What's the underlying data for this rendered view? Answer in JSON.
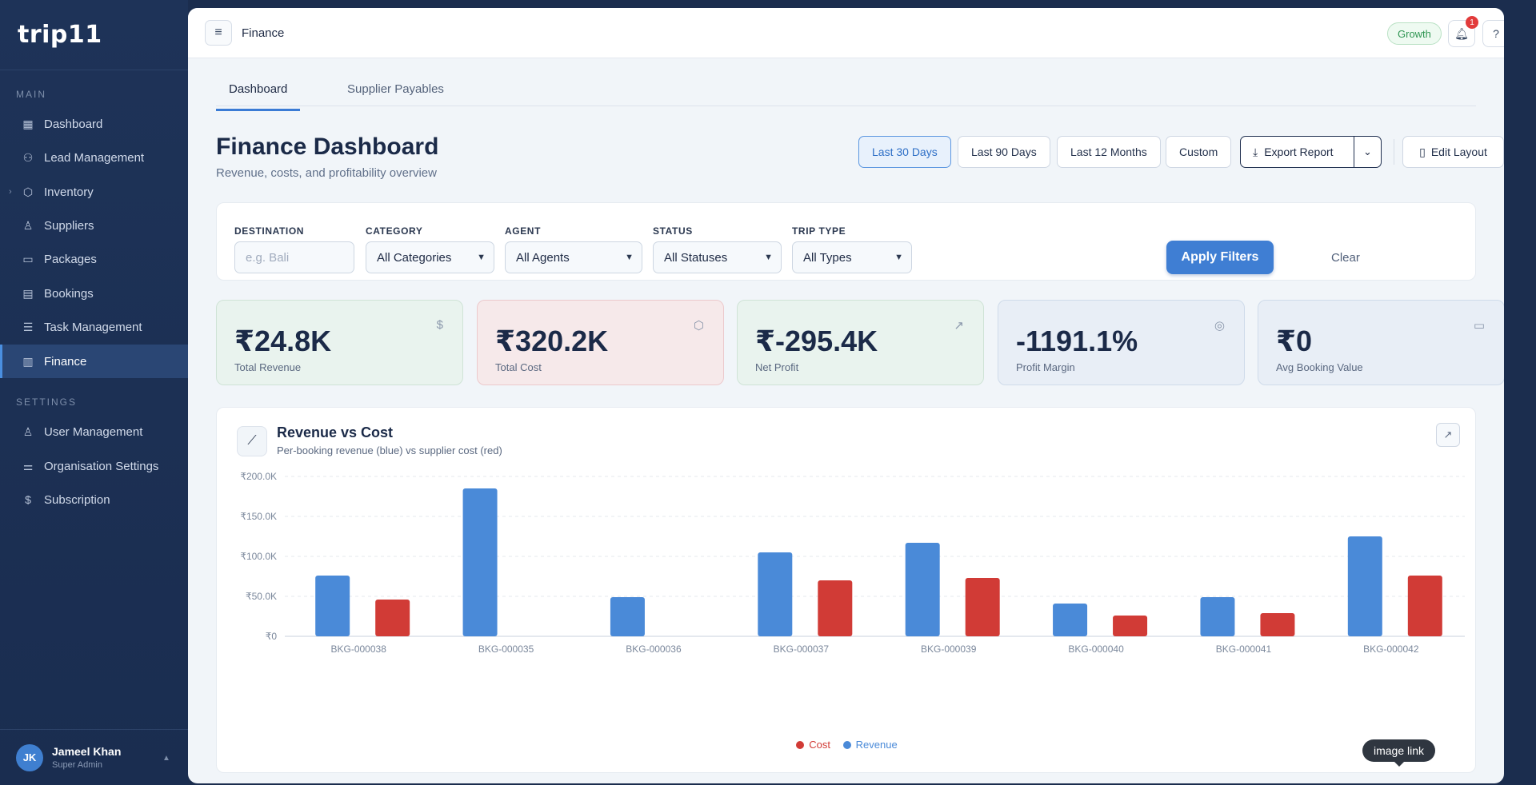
{
  "brand": {
    "logo": "trip11"
  },
  "sidebar": {
    "main_label": "MAIN",
    "settings_label": "SETTINGS",
    "main_items": [
      {
        "label": "Dashboard",
        "icon": "grid-icon"
      },
      {
        "label": "Lead Management",
        "icon": "user-plus-icon"
      },
      {
        "label": "Inventory",
        "icon": "box-icon"
      },
      {
        "label": "Suppliers",
        "icon": "user-icon"
      },
      {
        "label": "Packages",
        "icon": "archive-icon"
      },
      {
        "label": "Bookings",
        "icon": "calendar-icon"
      },
      {
        "label": "Task Management",
        "icon": "tasks-icon"
      },
      {
        "label": "Finance",
        "icon": "bar-chart-icon"
      }
    ],
    "settings_items": [
      {
        "label": "User Management",
        "icon": "user-icon"
      },
      {
        "label": "Organisation Settings",
        "icon": "sliders-icon"
      },
      {
        "label": "Subscription",
        "icon": "dollar-icon"
      }
    ],
    "user": {
      "initials": "JK",
      "name": "Jameel Khan",
      "role": "Super Admin"
    }
  },
  "topbar": {
    "title": "Finance",
    "plan": "Growth",
    "notifications": "1"
  },
  "tabs": [
    "Dashboard",
    "Supplier Payables"
  ],
  "page": {
    "title": "Finance Dashboard",
    "subtitle": "Revenue, costs, and profitability overview"
  },
  "ranges": [
    "Last 30 Days",
    "Last 90 Days",
    "Last 12 Months",
    "Custom"
  ],
  "actions": {
    "export": "Export Report",
    "edit": "Edit Layout"
  },
  "filters": {
    "destination": {
      "label": "DESTINATION",
      "placeholder": "e.g. Bali"
    },
    "category": {
      "label": "CATEGORY",
      "value": "All Categories"
    },
    "agent": {
      "label": "AGENT",
      "value": "All Agents"
    },
    "status": {
      "label": "STATUS",
      "value": "All Statuses"
    },
    "trip_type": {
      "label": "TRIP TYPE",
      "value": "All Types"
    },
    "clear": "Clear",
    "apply": "Apply Filters"
  },
  "kpis": [
    {
      "value": "₹24.8K",
      "label": "Total Revenue",
      "icon": "dollar-icon",
      "bg": "#e9f3ee",
      "border": "#cfe3d6"
    },
    {
      "value": "₹320.2K",
      "label": "Total Cost",
      "icon": "box-icon",
      "bg": "#f6e9ea",
      "border": "#ecc9cc"
    },
    {
      "value": "₹-295.4K",
      "label": "Net Profit",
      "icon": "trending-up-icon",
      "bg": "#e9f3ee",
      "border": "#cfe3d6"
    },
    {
      "value": "-1191.1%",
      "label": "Profit Margin",
      "icon": "target-icon",
      "bg": "#e8eef6",
      "border": "#cfdbea"
    },
    {
      "value": "₹0",
      "label": "Avg Booking Value",
      "icon": "card-icon",
      "bg": "#e8eef6",
      "border": "#cfdbea"
    }
  ],
  "chart": {
    "title": "Revenue vs Cost",
    "subtitle": "Per-booking revenue (blue) vs supplier cost (red)"
  },
  "chart_data": {
    "type": "bar",
    "categories": [
      "BKG-000038",
      "BKG-000035",
      "BKG-000036",
      "BKG-000037",
      "BKG-000039",
      "BKG-000040",
      "BKG-000041",
      "BKG-000042"
    ],
    "series": [
      {
        "name": "Revenue",
        "color": "#4a8ad8",
        "values": [
          76000,
          185000,
          49000,
          105000,
          117000,
          41000,
          49000,
          125000
        ]
      },
      {
        "name": "Cost",
        "color": "#d13b36",
        "values": [
          46000,
          0,
          0,
          70000,
          73000,
          26000,
          29000,
          76000
        ]
      }
    ],
    "ylim": [
      0,
      200000
    ],
    "yticks": [
      "₹0",
      "₹50.0K",
      "₹100.0K",
      "₹150.0K",
      "₹200.0K"
    ],
    "legend": [
      "Cost",
      "Revenue"
    ],
    "legend_position": "bottom-center",
    "grid": true
  },
  "tooltip": "image link"
}
